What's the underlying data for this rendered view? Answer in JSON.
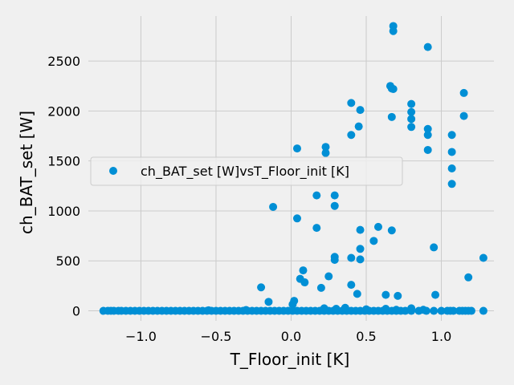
{
  "chart_data": {
    "type": "scatter",
    "xlabel": "T_Floor_init [K]",
    "ylabel": "ch_BAT_set [W]",
    "xlim": [
      -1.35,
      1.35
    ],
    "ylim": [
      -100,
      2950
    ],
    "xticks": [
      -1.0,
      -0.5,
      0.0,
      0.5,
      1.0
    ],
    "xtick_labels": [
      "−1.0",
      "−0.5",
      "0.0",
      "0.5",
      "1.0"
    ],
    "yticks": [
      0,
      500,
      1000,
      1500,
      2000,
      2500
    ],
    "ytick_labels": [
      "0",
      "500",
      "1000",
      "1500",
      "2000",
      "2500"
    ],
    "grid": true,
    "legend_position": "center-left",
    "colors": {
      "marker": "#008fd5",
      "background": "#f0f0f0",
      "grid": "#cbcbcb"
    },
    "series": [
      {
        "name": "ch_BAT_set [W]vsT_Floor_init [K]",
        "points": [
          [
            0.04,
            1625
          ],
          [
            0.23,
            1640
          ],
          [
            0.23,
            1580
          ],
          [
            0.4,
            2080
          ],
          [
            0.46,
            2010
          ],
          [
            0.45,
            1845
          ],
          [
            0.4,
            1760
          ],
          [
            0.66,
            2250
          ],
          [
            0.67,
            2225
          ],
          [
            0.68,
            2220
          ],
          [
            0.68,
            2850
          ],
          [
            0.68,
            2800
          ],
          [
            0.91,
            2640
          ],
          [
            0.67,
            1940
          ],
          [
            0.8,
            2070
          ],
          [
            0.8,
            1990
          ],
          [
            0.8,
            1920
          ],
          [
            0.8,
            1840
          ],
          [
            0.91,
            1820
          ],
          [
            0.91,
            1760
          ],
          [
            0.91,
            1610
          ],
          [
            1.15,
            2180
          ],
          [
            1.15,
            1950
          ],
          [
            1.07,
            1760
          ],
          [
            1.07,
            1590
          ],
          [
            1.07,
            1425
          ],
          [
            1.07,
            1270
          ],
          [
            -0.12,
            1040
          ],
          [
            0.04,
            925
          ],
          [
            0.17,
            1155
          ],
          [
            0.29,
            1155
          ],
          [
            0.29,
            1050
          ],
          [
            0.17,
            830
          ],
          [
            0.29,
            540
          ],
          [
            0.29,
            510
          ],
          [
            0.46,
            810
          ],
          [
            0.46,
            620
          ],
          [
            0.46,
            515
          ],
          [
            0.58,
            840
          ],
          [
            0.55,
            700
          ],
          [
            0.67,
            805
          ],
          [
            0.4,
            530
          ],
          [
            0.25,
            345
          ],
          [
            0.08,
            405
          ],
          [
            0.06,
            320
          ],
          [
            0.09,
            285
          ],
          [
            0.2,
            230
          ],
          [
            -0.2,
            235
          ],
          [
            -0.15,
            90
          ],
          [
            0.4,
            260
          ],
          [
            0.44,
            170
          ],
          [
            0.63,
            160
          ],
          [
            0.71,
            150
          ],
          [
            0.95,
            635
          ],
          [
            0.96,
            160
          ],
          [
            1.18,
            335
          ],
          [
            1.28,
            530
          ],
          [
            0.02,
            100
          ],
          [
            0.01,
            65
          ],
          [
            -1.25,
            0
          ],
          [
            -1.22,
            0
          ],
          [
            -1.2,
            0
          ],
          [
            -1.18,
            0
          ],
          [
            -1.15,
            0
          ],
          [
            -1.13,
            0
          ],
          [
            -1.1,
            0
          ],
          [
            -1.07,
            0
          ],
          [
            -1.04,
            0
          ],
          [
            -1.01,
            0
          ],
          [
            -0.98,
            0
          ],
          [
            -0.95,
            0
          ],
          [
            -0.92,
            0
          ],
          [
            -0.89,
            0
          ],
          [
            -0.86,
            0
          ],
          [
            -0.83,
            0
          ],
          [
            -0.8,
            0
          ],
          [
            -0.77,
            0
          ],
          [
            -0.74,
            0
          ],
          [
            -0.71,
            0
          ],
          [
            -0.68,
            0
          ],
          [
            -0.65,
            0
          ],
          [
            -0.62,
            0
          ],
          [
            -0.59,
            0
          ],
          [
            -0.56,
            0
          ],
          [
            -0.53,
            0
          ],
          [
            -0.5,
            0
          ],
          [
            -0.47,
            0
          ],
          [
            -0.44,
            0
          ],
          [
            -0.41,
            0
          ],
          [
            -0.38,
            0
          ],
          [
            -0.35,
            0
          ],
          [
            -0.32,
            0
          ],
          [
            -0.29,
            0
          ],
          [
            -0.26,
            0
          ],
          [
            -0.23,
            0
          ],
          [
            -0.2,
            0
          ],
          [
            -0.17,
            0
          ],
          [
            -0.14,
            0
          ],
          [
            -0.11,
            0
          ],
          [
            -0.08,
            0
          ],
          [
            -0.05,
            0
          ],
          [
            -0.02,
            0
          ],
          [
            0.01,
            0
          ],
          [
            0.04,
            0
          ],
          [
            0.07,
            0
          ],
          [
            0.1,
            0
          ],
          [
            0.13,
            0
          ],
          [
            0.16,
            0
          ],
          [
            0.19,
            0
          ],
          [
            0.22,
            0
          ],
          [
            0.25,
            0
          ],
          [
            0.28,
            0
          ],
          [
            0.31,
            0
          ],
          [
            0.34,
            0
          ],
          [
            0.37,
            0
          ],
          [
            0.4,
            0
          ],
          [
            0.43,
            0
          ],
          [
            0.46,
            0
          ],
          [
            0.49,
            0
          ],
          [
            0.52,
            0
          ],
          [
            0.55,
            0
          ],
          [
            0.58,
            0
          ],
          [
            0.61,
            0
          ],
          [
            0.64,
            0
          ],
          [
            0.67,
            0
          ],
          [
            0.7,
            0
          ],
          [
            0.73,
            0
          ],
          [
            0.76,
            0
          ],
          [
            0.8,
            0
          ],
          [
            0.85,
            0
          ],
          [
            0.9,
            0
          ],
          [
            0.95,
            0
          ],
          [
            1.0,
            0
          ],
          [
            1.04,
            0
          ],
          [
            1.06,
            0
          ],
          [
            1.08,
            0
          ],
          [
            1.12,
            0
          ],
          [
            1.14,
            0
          ],
          [
            1.16,
            0
          ],
          [
            1.18,
            0
          ],
          [
            1.2,
            0
          ],
          [
            1.28,
            0
          ],
          [
            0.22,
            25
          ],
          [
            0.3,
            20
          ],
          [
            0.36,
            30
          ],
          [
            0.5,
            15
          ],
          [
            0.63,
            20
          ],
          [
            0.8,
            25
          ],
          [
            0.88,
            10
          ],
          [
            -0.55,
            5
          ],
          [
            -0.3,
            8
          ],
          [
            0.7,
            10
          ]
        ]
      }
    ]
  }
}
